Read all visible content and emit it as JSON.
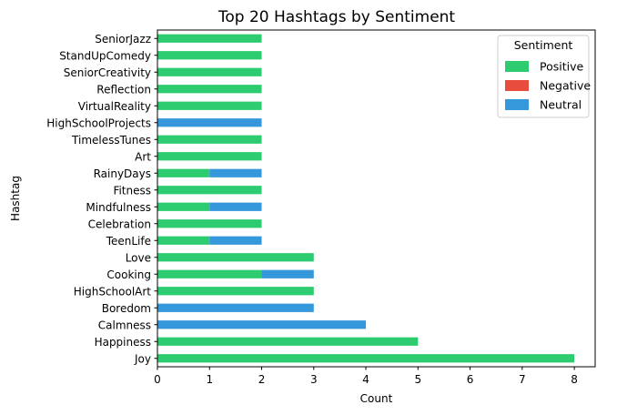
{
  "chart_data": {
    "type": "bar",
    "orientation": "horizontal",
    "stacked": true,
    "title": "Top 20 Hashtags by Sentiment",
    "xlabel": "Count",
    "ylabel": "Hashtag",
    "xlim": [
      0,
      8.4
    ],
    "xticks": [
      0,
      1,
      2,
      3,
      4,
      5,
      6,
      7,
      8
    ],
    "grid": false,
    "legend_title": "Sentiment",
    "legend_position": "top-right",
    "categories": [
      "Joy",
      "Happiness",
      "Calmness",
      "Boredom",
      "HighSchoolArt",
      "Cooking",
      "Love",
      "TeenLife",
      "Celebration",
      "Mindfulness",
      "Fitness",
      "RainyDays",
      "Art",
      "TimelessTunes",
      "HighSchoolProjects",
      "VirtualReality",
      "Reflection",
      "SeniorCreativity",
      "StandUpComedy",
      "SeniorJazz"
    ],
    "series": [
      {
        "name": "Positive",
        "color": "#2ecc71",
        "values": [
          8,
          5,
          0,
          0,
          3,
          2,
          3,
          1,
          2,
          1,
          2,
          1,
          2,
          2,
          0,
          2,
          2,
          2,
          2,
          2
        ]
      },
      {
        "name": "Negative",
        "color": "#e74c3c",
        "values": [
          0,
          0,
          0,
          0,
          0,
          0,
          0,
          0,
          0,
          0,
          0,
          0,
          0,
          0,
          0,
          0,
          0,
          0,
          0,
          0
        ]
      },
      {
        "name": "Neutral",
        "color": "#3498db",
        "values": [
          0,
          0,
          4,
          3,
          0,
          1,
          0,
          1,
          0,
          1,
          0,
          1,
          0,
          0,
          2,
          0,
          0,
          0,
          0,
          0
        ]
      }
    ]
  }
}
